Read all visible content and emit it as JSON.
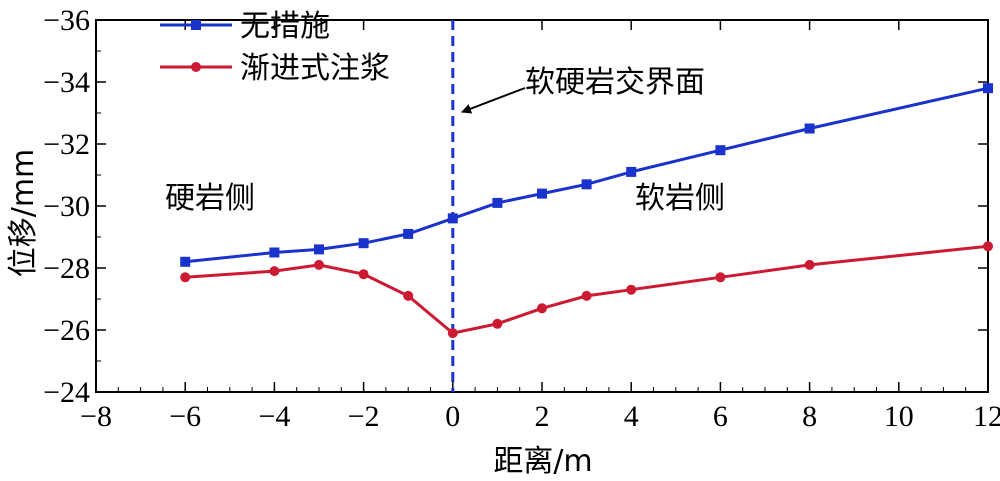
{
  "chart_data": {
    "type": "line",
    "xlabel": "距离/m",
    "ylabel": "位移/mm",
    "xlim": [
      -8,
      12
    ],
    "ylim": [
      -24,
      -36
    ],
    "y_axis_inverted": true,
    "xticks": [
      -8,
      -6,
      -4,
      -2,
      0,
      2,
      4,
      6,
      8,
      10,
      12
    ],
    "xtick_labels": [
      "−8",
      "−6",
      "−4",
      "−2",
      "0",
      "2",
      "4",
      "6",
      "8",
      "10",
      "12"
    ],
    "yticks": [
      -24,
      -26,
      -28,
      -30,
      -32,
      -34,
      -36
    ],
    "ytick_labels": [
      "−24",
      "−26",
      "−28",
      "−30",
      "−32",
      "−34",
      "−36"
    ],
    "grid": false,
    "legend_position": "top-left",
    "series": [
      {
        "name": "无措施",
        "color": "#1a33cc",
        "marker": "square",
        "x": [
          -6,
          -4,
          -3,
          -2,
          -1,
          0,
          1,
          2,
          3,
          4,
          6,
          8,
          12
        ],
        "y": [
          -28.2,
          -28.5,
          -28.6,
          -28.8,
          -29.1,
          -29.6,
          -30.1,
          -30.4,
          -30.7,
          -31.1,
          -31.8,
          -32.5,
          -33.8
        ]
      },
      {
        "name": "渐进式注浆",
        "color": "#cc1a33",
        "marker": "circle",
        "x": [
          -6,
          -4,
          -3,
          -2,
          -1,
          0,
          1,
          2,
          3,
          4,
          6,
          8,
          12
        ],
        "y": [
          -27.7,
          -27.9,
          -28.1,
          -27.8,
          -27.1,
          -25.9,
          -26.2,
          -26.7,
          -27.1,
          -27.3,
          -27.7,
          -28.1,
          -28.7
        ]
      }
    ],
    "vline": {
      "x": 0,
      "color": "#1a33cc",
      "style": "dashed"
    },
    "annotations": [
      {
        "text": "软硬岩交界面",
        "arrow_to": {
          "x": 0,
          "y": -33.0
        }
      },
      {
        "text": "硬岩侧"
      },
      {
        "text": "软岩侧"
      }
    ]
  }
}
